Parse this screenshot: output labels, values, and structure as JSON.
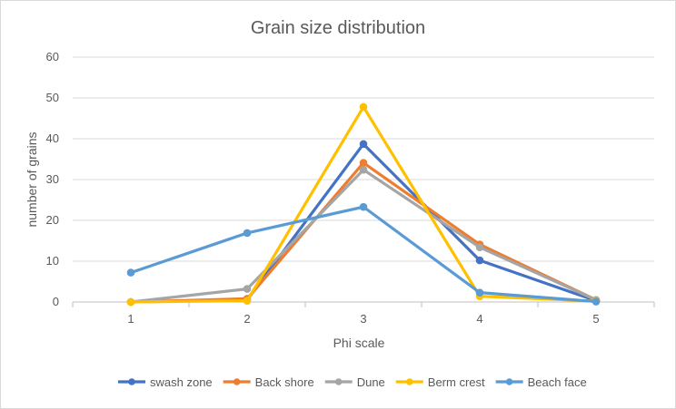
{
  "chart_data": {
    "type": "line",
    "title": "Grain size distribution",
    "xlabel": "Phi scale",
    "ylabel": "number of grains",
    "x": [
      1,
      2,
      3,
      4,
      5
    ],
    "ylim": [
      0,
      60
    ],
    "yticks": [
      0,
      10,
      20,
      30,
      40,
      50,
      60
    ],
    "grid": true,
    "legend_position": "bottom",
    "series": [
      {
        "name": "swash zone",
        "color": "#4472C4",
        "values": [
          0,
          0.5,
          38.7,
          10.2,
          0.3
        ]
      },
      {
        "name": "Back shore",
        "color": "#ED7D31",
        "values": [
          0,
          0.8,
          34.1,
          14.1,
          0.5
        ]
      },
      {
        "name": "Dune",
        "color": "#A5A5A5",
        "values": [
          0,
          3.2,
          32.4,
          13.4,
          0.5
        ]
      },
      {
        "name": "Berm crest",
        "color": "#FFC000",
        "values": [
          0,
          0.3,
          47.8,
          1.4,
          0.2
        ]
      },
      {
        "name": "Beach face",
        "color": "#5B9BD5",
        "values": [
          7.2,
          16.9,
          23.3,
          2.3,
          0.1
        ]
      }
    ]
  }
}
